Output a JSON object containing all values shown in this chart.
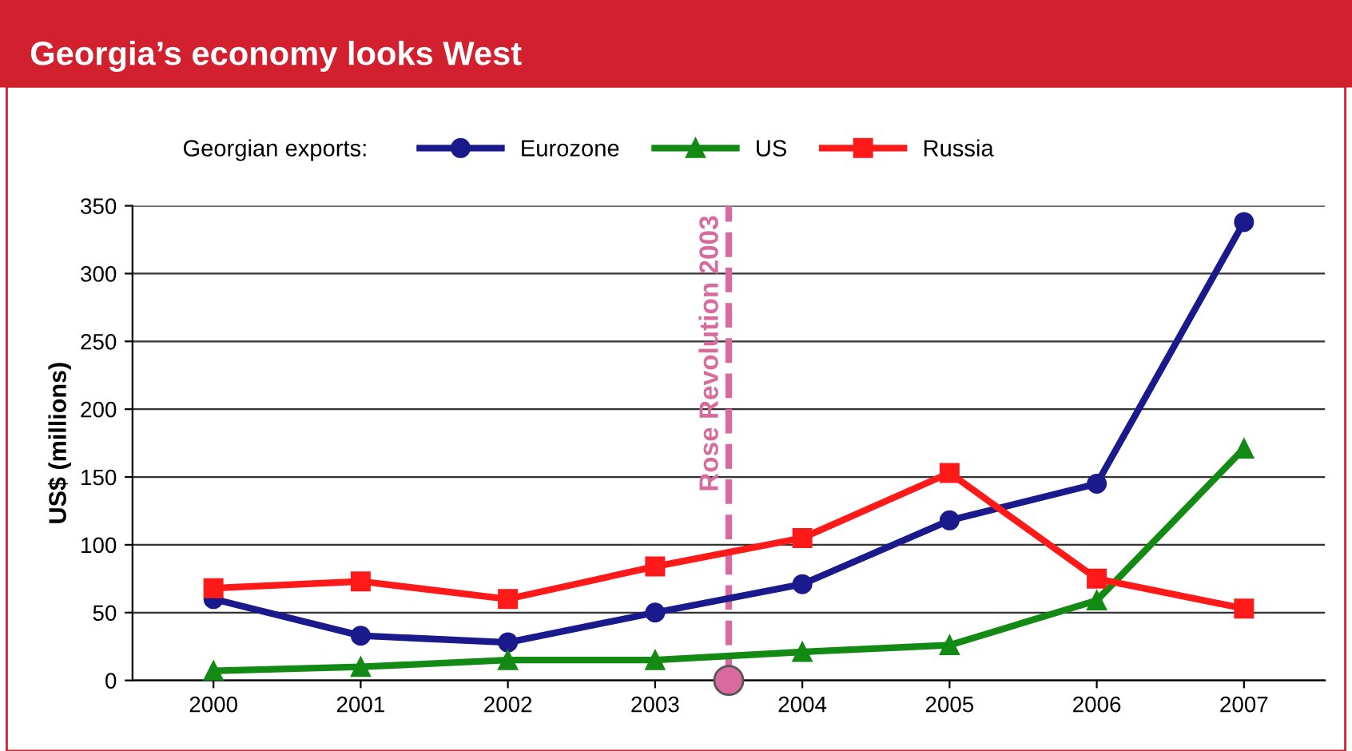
{
  "chart_data": {
    "type": "line",
    "title": "Georgia’s economy looks West",
    "ylabel": "US$ (millions)",
    "legend_title": "Georgian exports:",
    "x": [
      2000,
      2001,
      2002,
      2003,
      2004,
      2005,
      2006,
      2007
    ],
    "xlim": [
      1999.45,
      2007.55
    ],
    "xticks": [
      2000,
      2001,
      2002,
      2003,
      2004,
      2005,
      2006,
      2007
    ],
    "ylim": [
      0,
      350
    ],
    "yticks": [
      0,
      50,
      100,
      150,
      200,
      250,
      300,
      350
    ],
    "grid": "y",
    "legend": "top",
    "series": [
      {
        "name": "Eurozone",
        "color": "#1a1a8c",
        "marker": "circle",
        "values": [
          60,
          33,
          28,
          50,
          71,
          118,
          145,
          338
        ]
      },
      {
        "name": "US",
        "color": "#138a13",
        "marker": "triangle",
        "values": [
          7,
          10,
          15,
          15,
          21,
          26,
          59,
          171
        ]
      },
      {
        "name": "Russia",
        "color": "#ff1a1a",
        "marker": "square",
        "values": [
          68,
          73,
          60,
          84,
          105,
          153,
          75,
          53
        ]
      }
    ],
    "ref_lines": [
      {
        "axis": "x",
        "value": 2003.5,
        "label": "Rose Revolution 2003",
        "color": "#d96aa0",
        "line_style": "dashed"
      }
    ]
  }
}
